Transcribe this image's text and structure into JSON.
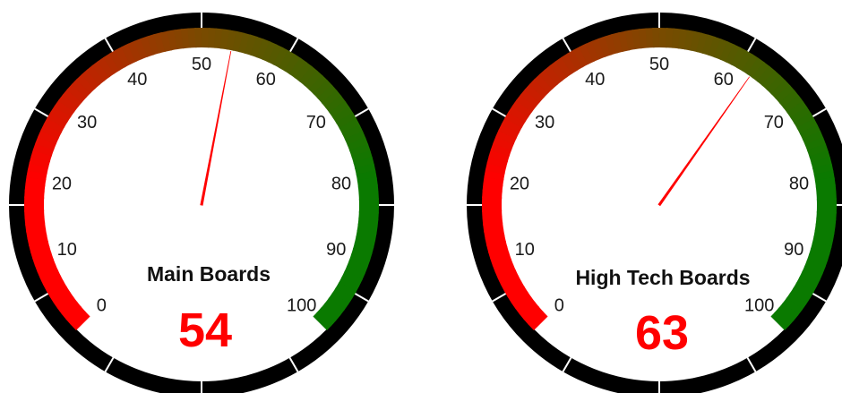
{
  "chart_data": [
    {
      "type": "gauge",
      "title": "Main Boards",
      "value": 54,
      "display_value": "54",
      "range": [
        0,
        100
      ],
      "ticks": [
        "0",
        "10",
        "20",
        "30",
        "40",
        "50",
        "60",
        "70",
        "80",
        "90",
        "100"
      ],
      "value_color": "#ff0000",
      "needle_color": "#ff0000"
    },
    {
      "type": "gauge",
      "title": "High Tech Boards",
      "value": 63,
      "display_value": "63",
      "range": [
        0,
        100
      ],
      "ticks": [
        "0",
        "10",
        "20",
        "30",
        "40",
        "50",
        "60",
        "70",
        "80",
        "90",
        "100"
      ],
      "value_color": "#ff0000",
      "needle_color": "#ff0000"
    }
  ],
  "colors": {
    "band_low": "#ff0000",
    "band_mid": "#7a4a00",
    "band_high": "#0a7a00",
    "bezel": "#000000",
    "face": "#ffffff"
  }
}
